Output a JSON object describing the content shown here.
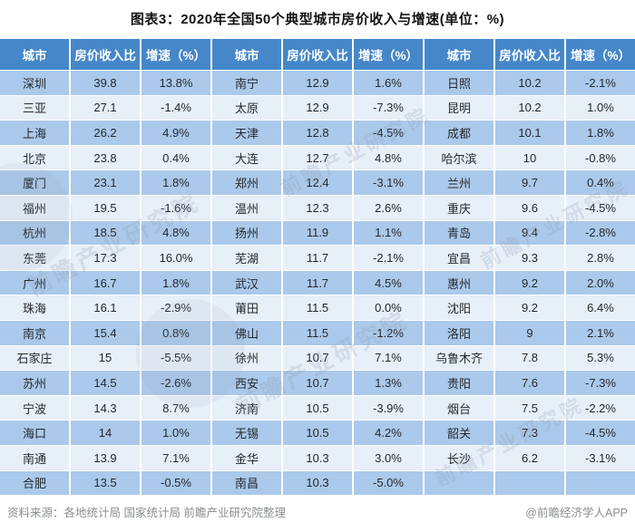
{
  "title": "图表3：2020年全国50个典型城市房价收入与增速(单位：%)",
  "table": {
    "column_headers": [
      "城市",
      "房价收入比",
      "增速（%）"
    ]
  },
  "chart_data": {
    "type": "table",
    "title": "图表3：2020年全国50个典型城市房价收入与增速(单位：%)",
    "columns": [
      "城市",
      "房价收入比",
      "增速（%）"
    ],
    "layout": "3 column-groups of 17 rows, column-major order",
    "rows": [
      {
        "city": "深圳",
        "ratio": 39.8,
        "growth_pct": 13.8
      },
      {
        "city": "三亚",
        "ratio": 27.1,
        "growth_pct": -1.4
      },
      {
        "city": "上海",
        "ratio": 26.2,
        "growth_pct": 4.9
      },
      {
        "city": "北京",
        "ratio": 23.8,
        "growth_pct": 0.4
      },
      {
        "city": "厦门",
        "ratio": 23.1,
        "growth_pct": 1.8
      },
      {
        "city": "福州",
        "ratio": 19.5,
        "growth_pct": -1.6
      },
      {
        "city": "杭州",
        "ratio": 18.5,
        "growth_pct": 4.8
      },
      {
        "city": "东莞",
        "ratio": 17.3,
        "growth_pct": 16.0
      },
      {
        "city": "广州",
        "ratio": 16.7,
        "growth_pct": 1.8
      },
      {
        "city": "珠海",
        "ratio": 16.1,
        "growth_pct": -2.9
      },
      {
        "city": "南京",
        "ratio": 15.4,
        "growth_pct": 0.8
      },
      {
        "city": "石家庄",
        "ratio": 15,
        "growth_pct": -5.5
      },
      {
        "city": "苏州",
        "ratio": 14.5,
        "growth_pct": -2.6
      },
      {
        "city": "宁波",
        "ratio": 14.3,
        "growth_pct": 8.7
      },
      {
        "city": "海口",
        "ratio": 14,
        "growth_pct": 1.0
      },
      {
        "city": "南通",
        "ratio": 13.9,
        "growth_pct": 7.1
      },
      {
        "city": "合肥",
        "ratio": 13.5,
        "growth_pct": -0.5
      },
      {
        "city": "南宁",
        "ratio": 12.9,
        "growth_pct": 1.6
      },
      {
        "city": "太原",
        "ratio": 12.9,
        "growth_pct": -7.3
      },
      {
        "city": "天津",
        "ratio": 12.8,
        "growth_pct": -4.5
      },
      {
        "city": "大连",
        "ratio": 12.7,
        "growth_pct": 4.8
      },
      {
        "city": "郑州",
        "ratio": 12.4,
        "growth_pct": -3.1
      },
      {
        "city": "温州",
        "ratio": 12.3,
        "growth_pct": 2.6
      },
      {
        "city": "扬州",
        "ratio": 11.9,
        "growth_pct": 1.1
      },
      {
        "city": "芜湖",
        "ratio": 11.7,
        "growth_pct": -2.1
      },
      {
        "city": "武汉",
        "ratio": 11.7,
        "growth_pct": 4.5
      },
      {
        "city": "莆田",
        "ratio": 11.5,
        "growth_pct": 0.0
      },
      {
        "city": "佛山",
        "ratio": 11.5,
        "growth_pct": -1.2
      },
      {
        "city": "徐州",
        "ratio": 10.7,
        "growth_pct": 7.1
      },
      {
        "city": "西安",
        "ratio": 10.7,
        "growth_pct": 1.3
      },
      {
        "city": "济南",
        "ratio": 10.5,
        "growth_pct": -3.9
      },
      {
        "city": "无锡",
        "ratio": 10.5,
        "growth_pct": 4.2
      },
      {
        "city": "金华",
        "ratio": 10.3,
        "growth_pct": 3.0
      },
      {
        "city": "南昌",
        "ratio": 10.3,
        "growth_pct": -5.0
      },
      {
        "city": "日照",
        "ratio": 10.2,
        "growth_pct": -2.1
      },
      {
        "city": "昆明",
        "ratio": 10.2,
        "growth_pct": 1.0
      },
      {
        "city": "成都",
        "ratio": 10.1,
        "growth_pct": 1.8
      },
      {
        "city": "哈尔滨",
        "ratio": 10,
        "growth_pct": -0.8
      },
      {
        "city": "兰州",
        "ratio": 9.7,
        "growth_pct": 0.4
      },
      {
        "city": "重庆",
        "ratio": 9.6,
        "growth_pct": -4.5
      },
      {
        "city": "青岛",
        "ratio": 9.4,
        "growth_pct": -2.8
      },
      {
        "city": "宜昌",
        "ratio": 9.3,
        "growth_pct": 2.8
      },
      {
        "city": "惠州",
        "ratio": 9.2,
        "growth_pct": 2.0
      },
      {
        "city": "沈阳",
        "ratio": 9.2,
        "growth_pct": 6.4
      },
      {
        "city": "洛阳",
        "ratio": 9,
        "growth_pct": 2.1
      },
      {
        "city": "乌鲁木齐",
        "ratio": 7.8,
        "growth_pct": 5.3
      },
      {
        "city": "贵阳",
        "ratio": 7.6,
        "growth_pct": -7.3
      },
      {
        "city": "烟台",
        "ratio": 7.5,
        "growth_pct": -2.2
      },
      {
        "city": "韶关",
        "ratio": 7.3,
        "growth_pct": -4.5
      },
      {
        "city": "长沙",
        "ratio": 6.2,
        "growth_pct": -3.1
      }
    ]
  },
  "footer": {
    "source": "资料来源：各地统计局 国家统计局 前瞻产业研究院整理",
    "credit": "@前瞻经济学人APP"
  },
  "watermark": {
    "text": "前瞻产业研究院"
  },
  "colors": {
    "header_bg": "#4587C9",
    "row_odd": "#ABC9EA",
    "row_even": "#E7EFF9",
    "separator": "#FFFFFF",
    "title_text": "#141414",
    "footer_text": "#8A8D91"
  }
}
